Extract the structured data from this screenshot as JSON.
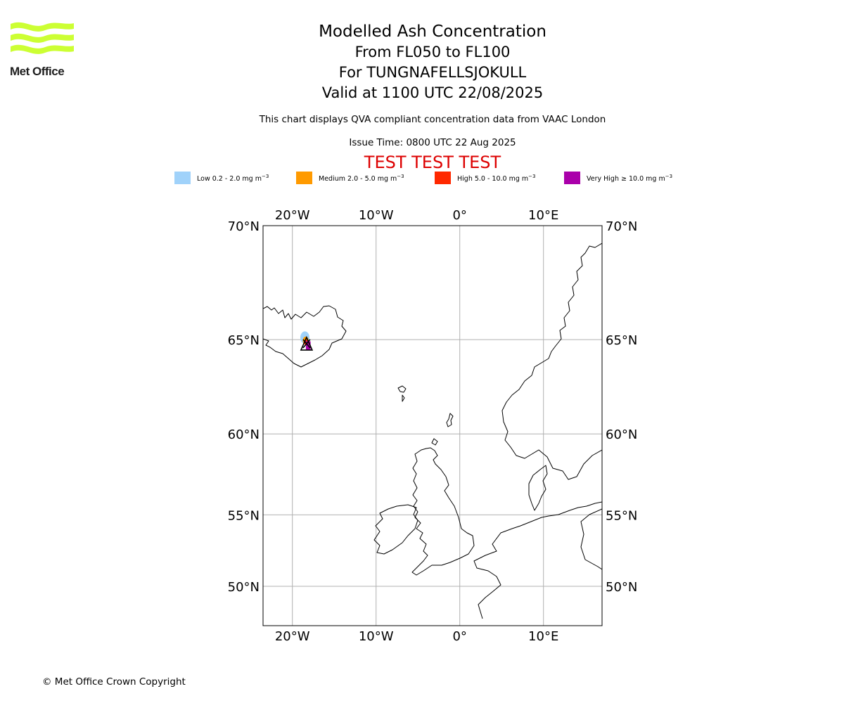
{
  "logo": {
    "text": "Met Office",
    "wave_color": "#ccff33"
  },
  "titles": {
    "main": "Modelled Ash Concentration",
    "levels": "From FL050 to FL100",
    "volcano": "For TUNGNAFELLSJOKULL",
    "valid": "Valid at 1100 UTC 22/08/2025",
    "subtitle": "This chart displays QVA compliant concentration data from VAAC London",
    "issue_time": "Issue Time: 0800 UTC 22 Aug 2025",
    "test_banner": "TEST TEST TEST",
    "test_color": "#dd0000"
  },
  "legend": [
    {
      "text": "Low 0.2 - 2.0 mg m",
      "sup": "−3",
      "color": "#a0d2fa"
    },
    {
      "text": "Medium 2.0 - 5.0 mg m",
      "sup": "−3",
      "color": "#ff9a00"
    },
    {
      "text": "High 5.0 - 10.0 mg m",
      "sup": "−3",
      "color": "#ff2800"
    },
    {
      "text": "Very High ≥ 10.0 mg m",
      "sup": "−3",
      "color": "#aa00aa"
    }
  ],
  "map": {
    "lon_range": [
      -23.5,
      17
    ],
    "lat_range": [
      47,
      70
    ],
    "lon_ticks": [
      {
        "value": -20,
        "label": "20°W"
      },
      {
        "value": -10,
        "label": "10°W"
      },
      {
        "value": 0,
        "label": "0°"
      },
      {
        "value": 10,
        "label": "10°E"
      }
    ],
    "lat_ticks": [
      {
        "value": 70,
        "label": "70°N"
      },
      {
        "value": 65,
        "label": "65°N"
      },
      {
        "value": 60,
        "label": "60°N"
      },
      {
        "value": 55,
        "label": "55°N"
      },
      {
        "value": 50,
        "label": "50°N"
      }
    ],
    "grid": true,
    "volcano": {
      "lon": -18.3,
      "lat": 64.8
    },
    "ash": [
      {
        "level": "Low",
        "lon": -18.5,
        "lat": 65.1,
        "rlon": 0.55,
        "rlat": 0.3
      },
      {
        "level": "Medium",
        "lon": -18.4,
        "lat": 64.95,
        "rlon": 0.35,
        "rlat": 0.2
      },
      {
        "level": "High",
        "lon": -18.3,
        "lat": 64.85,
        "rlon": 0.25,
        "rlat": 0.15
      },
      {
        "level": "Very High",
        "lon": -18.1,
        "lat": 64.7,
        "rlon": 0.28,
        "rlat": 0.22
      }
    ]
  },
  "copyright": "© Met Office Crown Copyright"
}
